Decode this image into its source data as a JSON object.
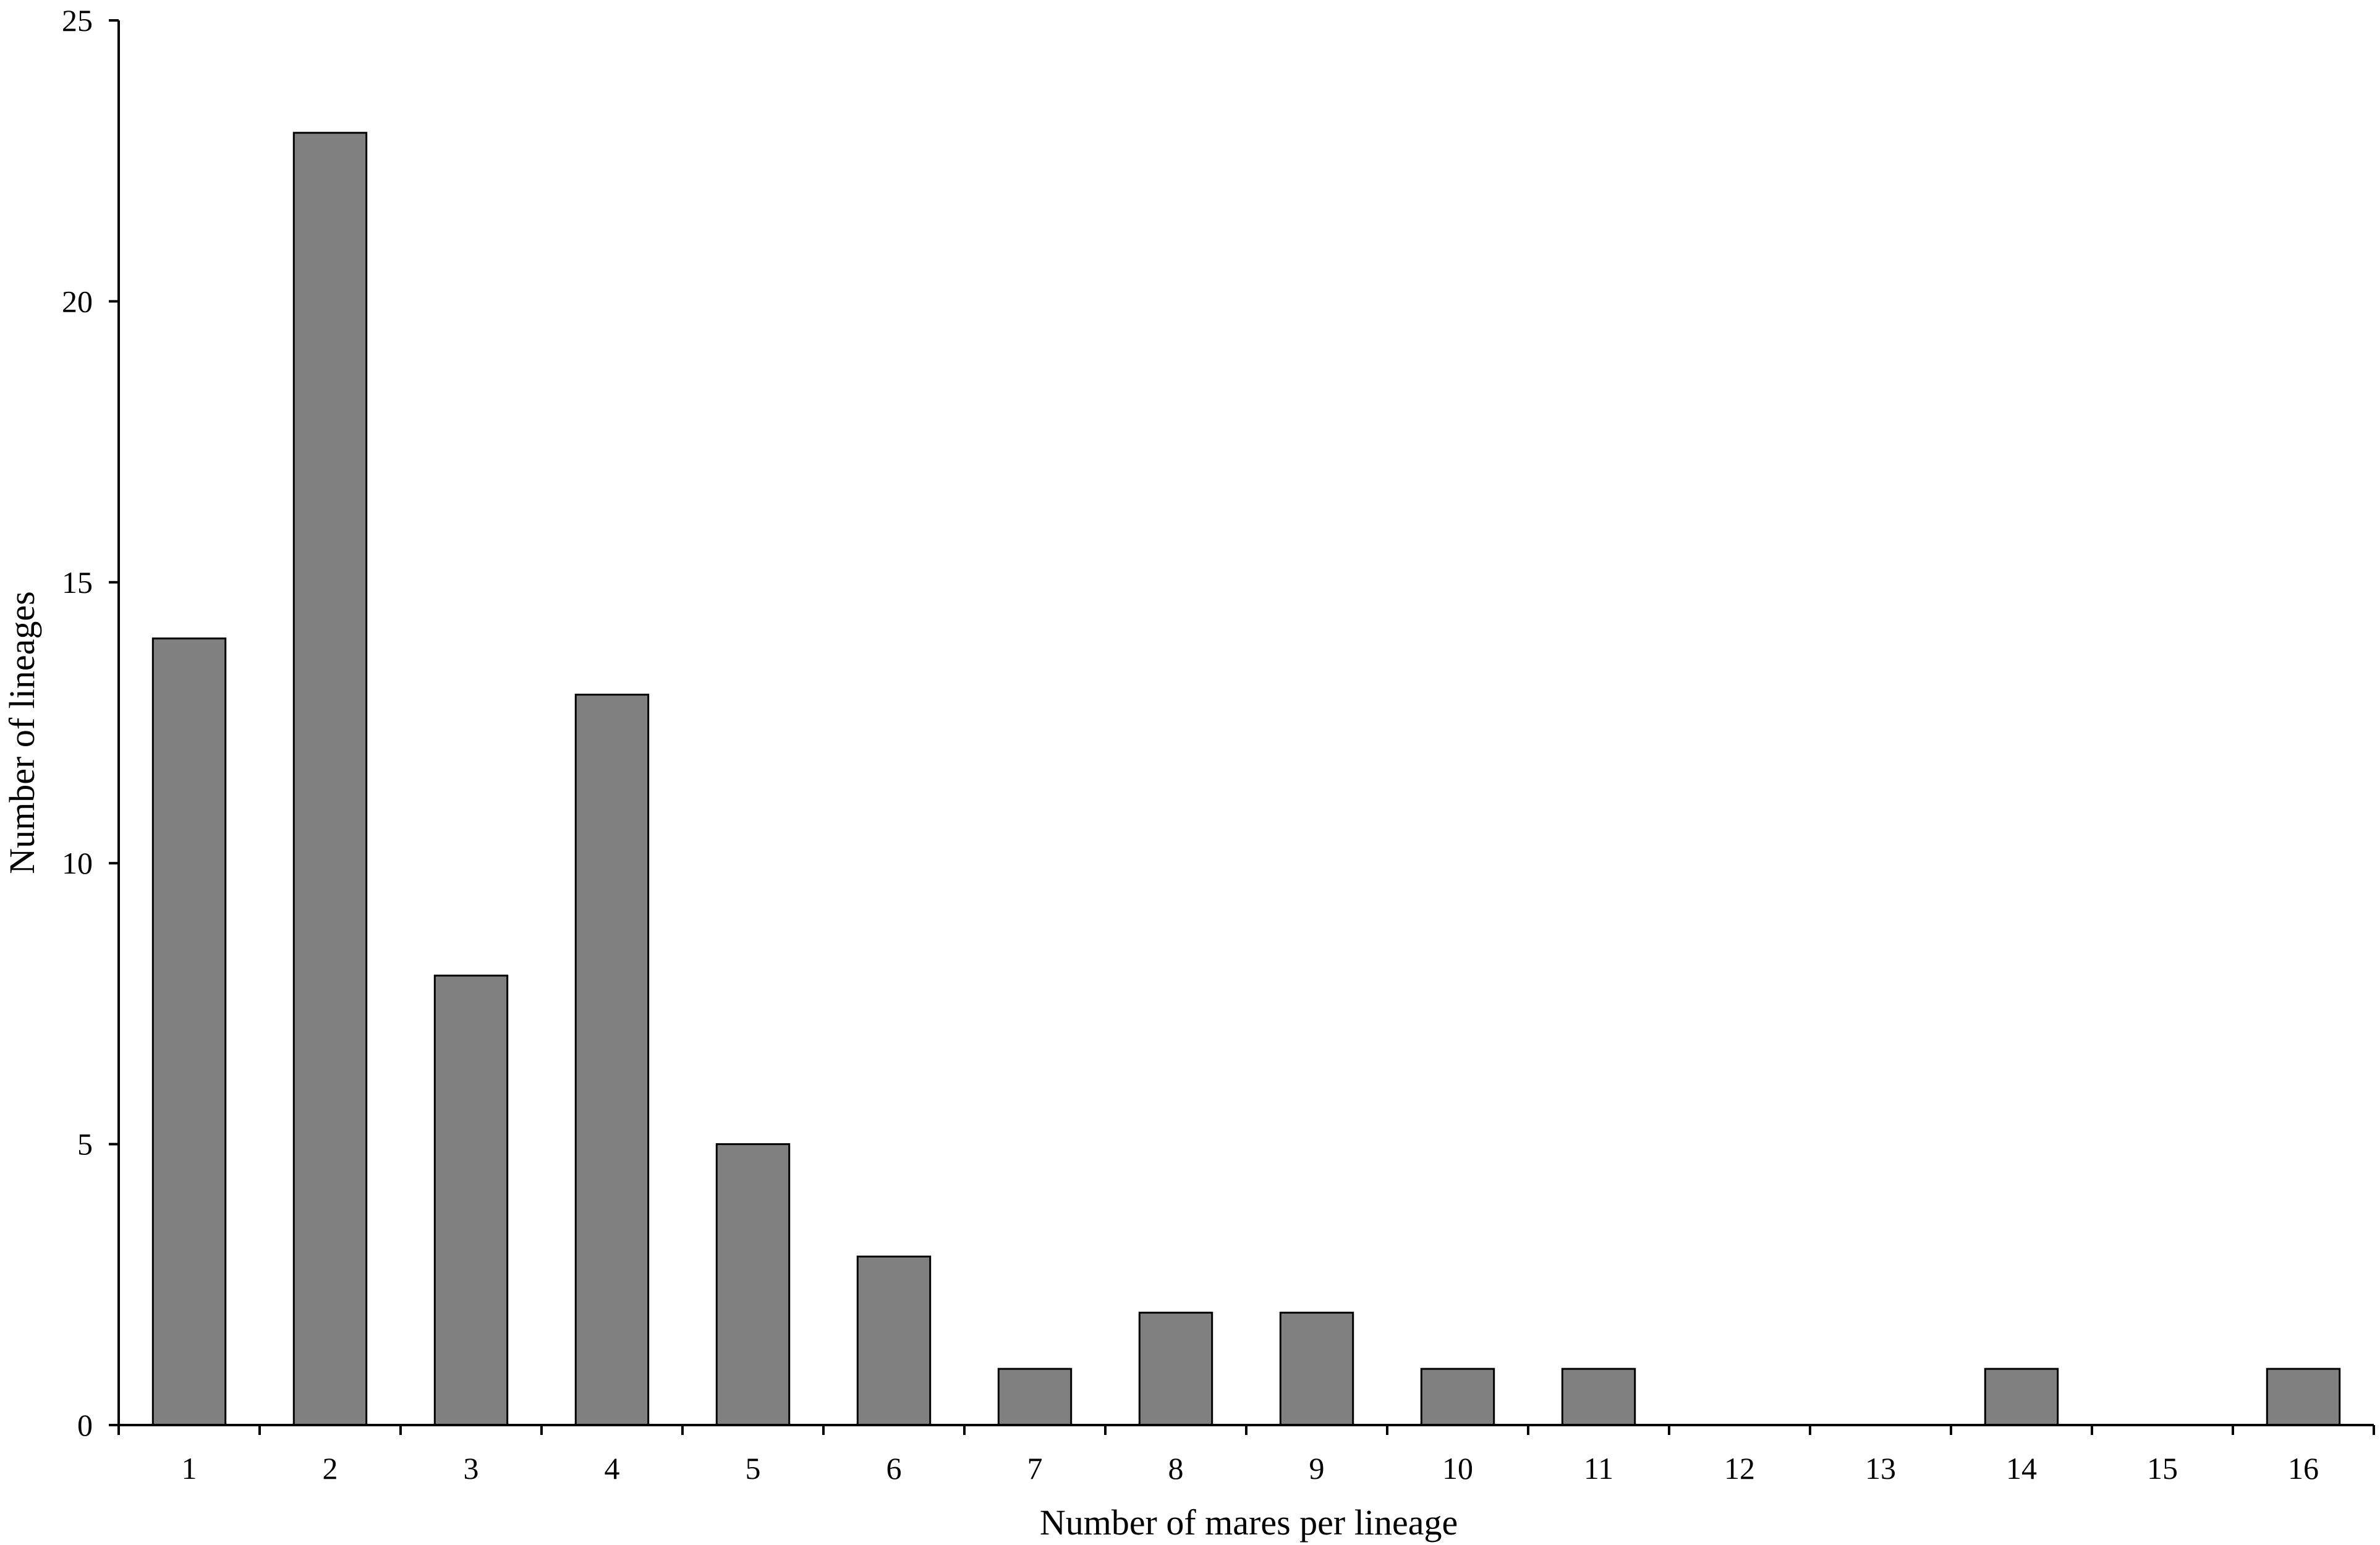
{
  "chart_data": {
    "type": "bar",
    "xlabel": "Number of mares per lineage",
    "ylabel": "Number of lineages",
    "categories": [
      "1",
      "2",
      "3",
      "4",
      "5",
      "6",
      "7",
      "8",
      "9",
      "10",
      "11",
      "12",
      "13",
      "14",
      "15",
      "16"
    ],
    "values": [
      14,
      23,
      8,
      13,
      5,
      3,
      1,
      2,
      2,
      1,
      1,
      0,
      0,
      1,
      0,
      1
    ],
    "ylim": [
      0,
      25
    ],
    "yticks": [
      0,
      5,
      10,
      15,
      20,
      25
    ],
    "grid": false,
    "legend": "none",
    "colors": {
      "bar_fill": "#808080",
      "bar_edge": "#000000",
      "axis": "#000000"
    }
  }
}
